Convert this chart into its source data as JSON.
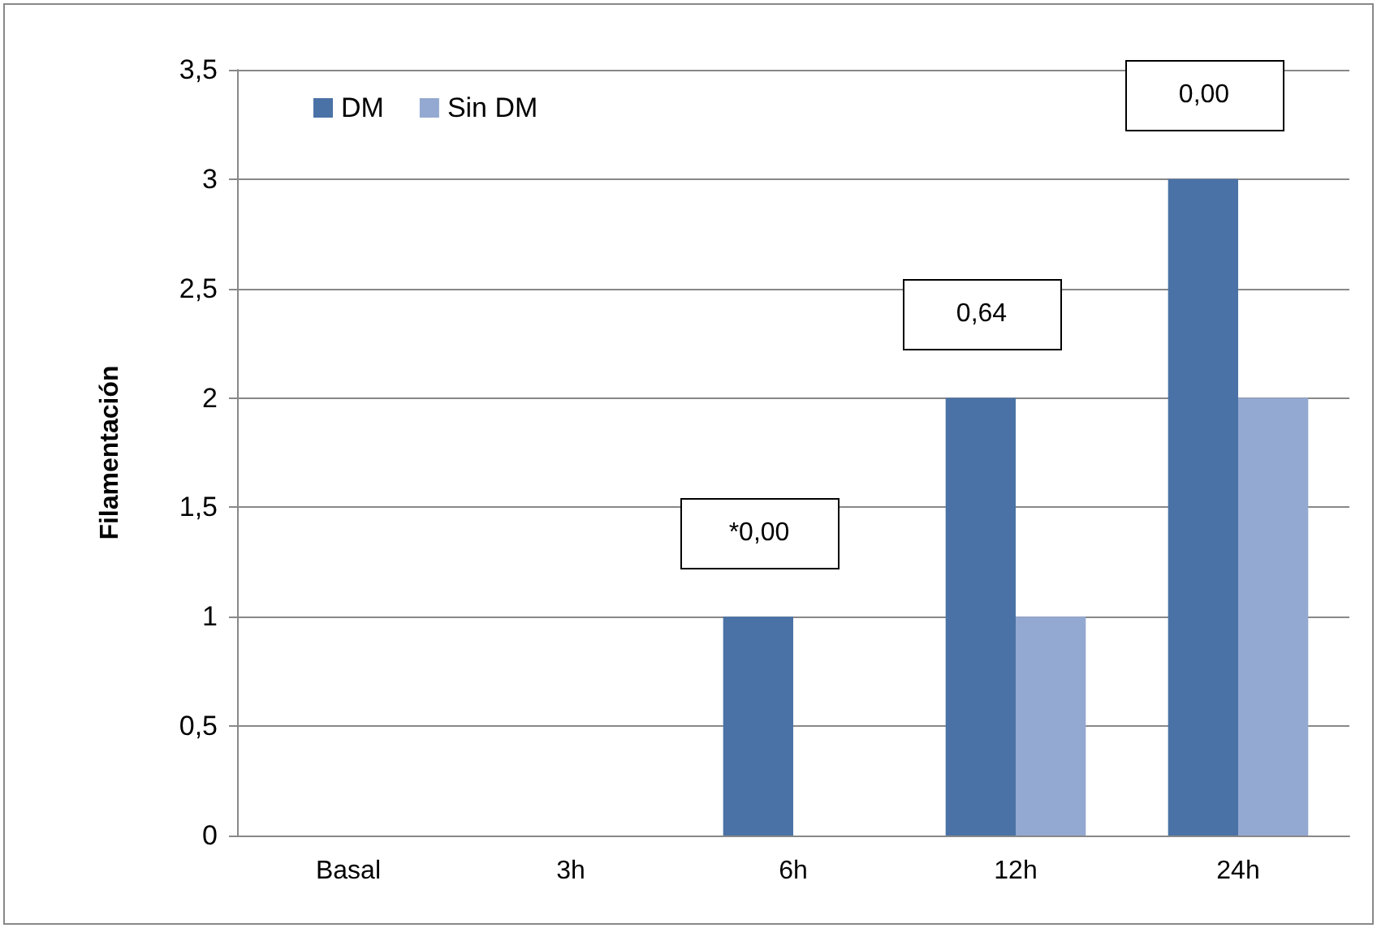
{
  "chart_data": {
    "type": "bar",
    "ylabel": "Filamentación",
    "categories": [
      "Basal",
      "3h",
      "6h",
      "12h",
      "24h"
    ],
    "series": [
      {
        "name": "DM",
        "color": "#4a72a6",
        "values": [
          0,
          0,
          1,
          2,
          3
        ]
      },
      {
        "name": "Sin DM",
        "color": "#94a9d1",
        "values": [
          0,
          0,
          0,
          1,
          2
        ]
      }
    ],
    "ylim": [
      0,
      3.5
    ],
    "yticks": [
      0,
      {
        "value": 0.5,
        "label": "0,5"
      },
      1,
      {
        "value": 1.5,
        "label": "1,5"
      },
      2,
      {
        "value": 2.5,
        "label": "2,5"
      },
      3,
      {
        "value": 3.5,
        "label": "3,5"
      }
    ],
    "grid": "y",
    "legend": "top left",
    "annotations": [
      "*0,00",
      "0,64",
      "0,00"
    ]
  }
}
